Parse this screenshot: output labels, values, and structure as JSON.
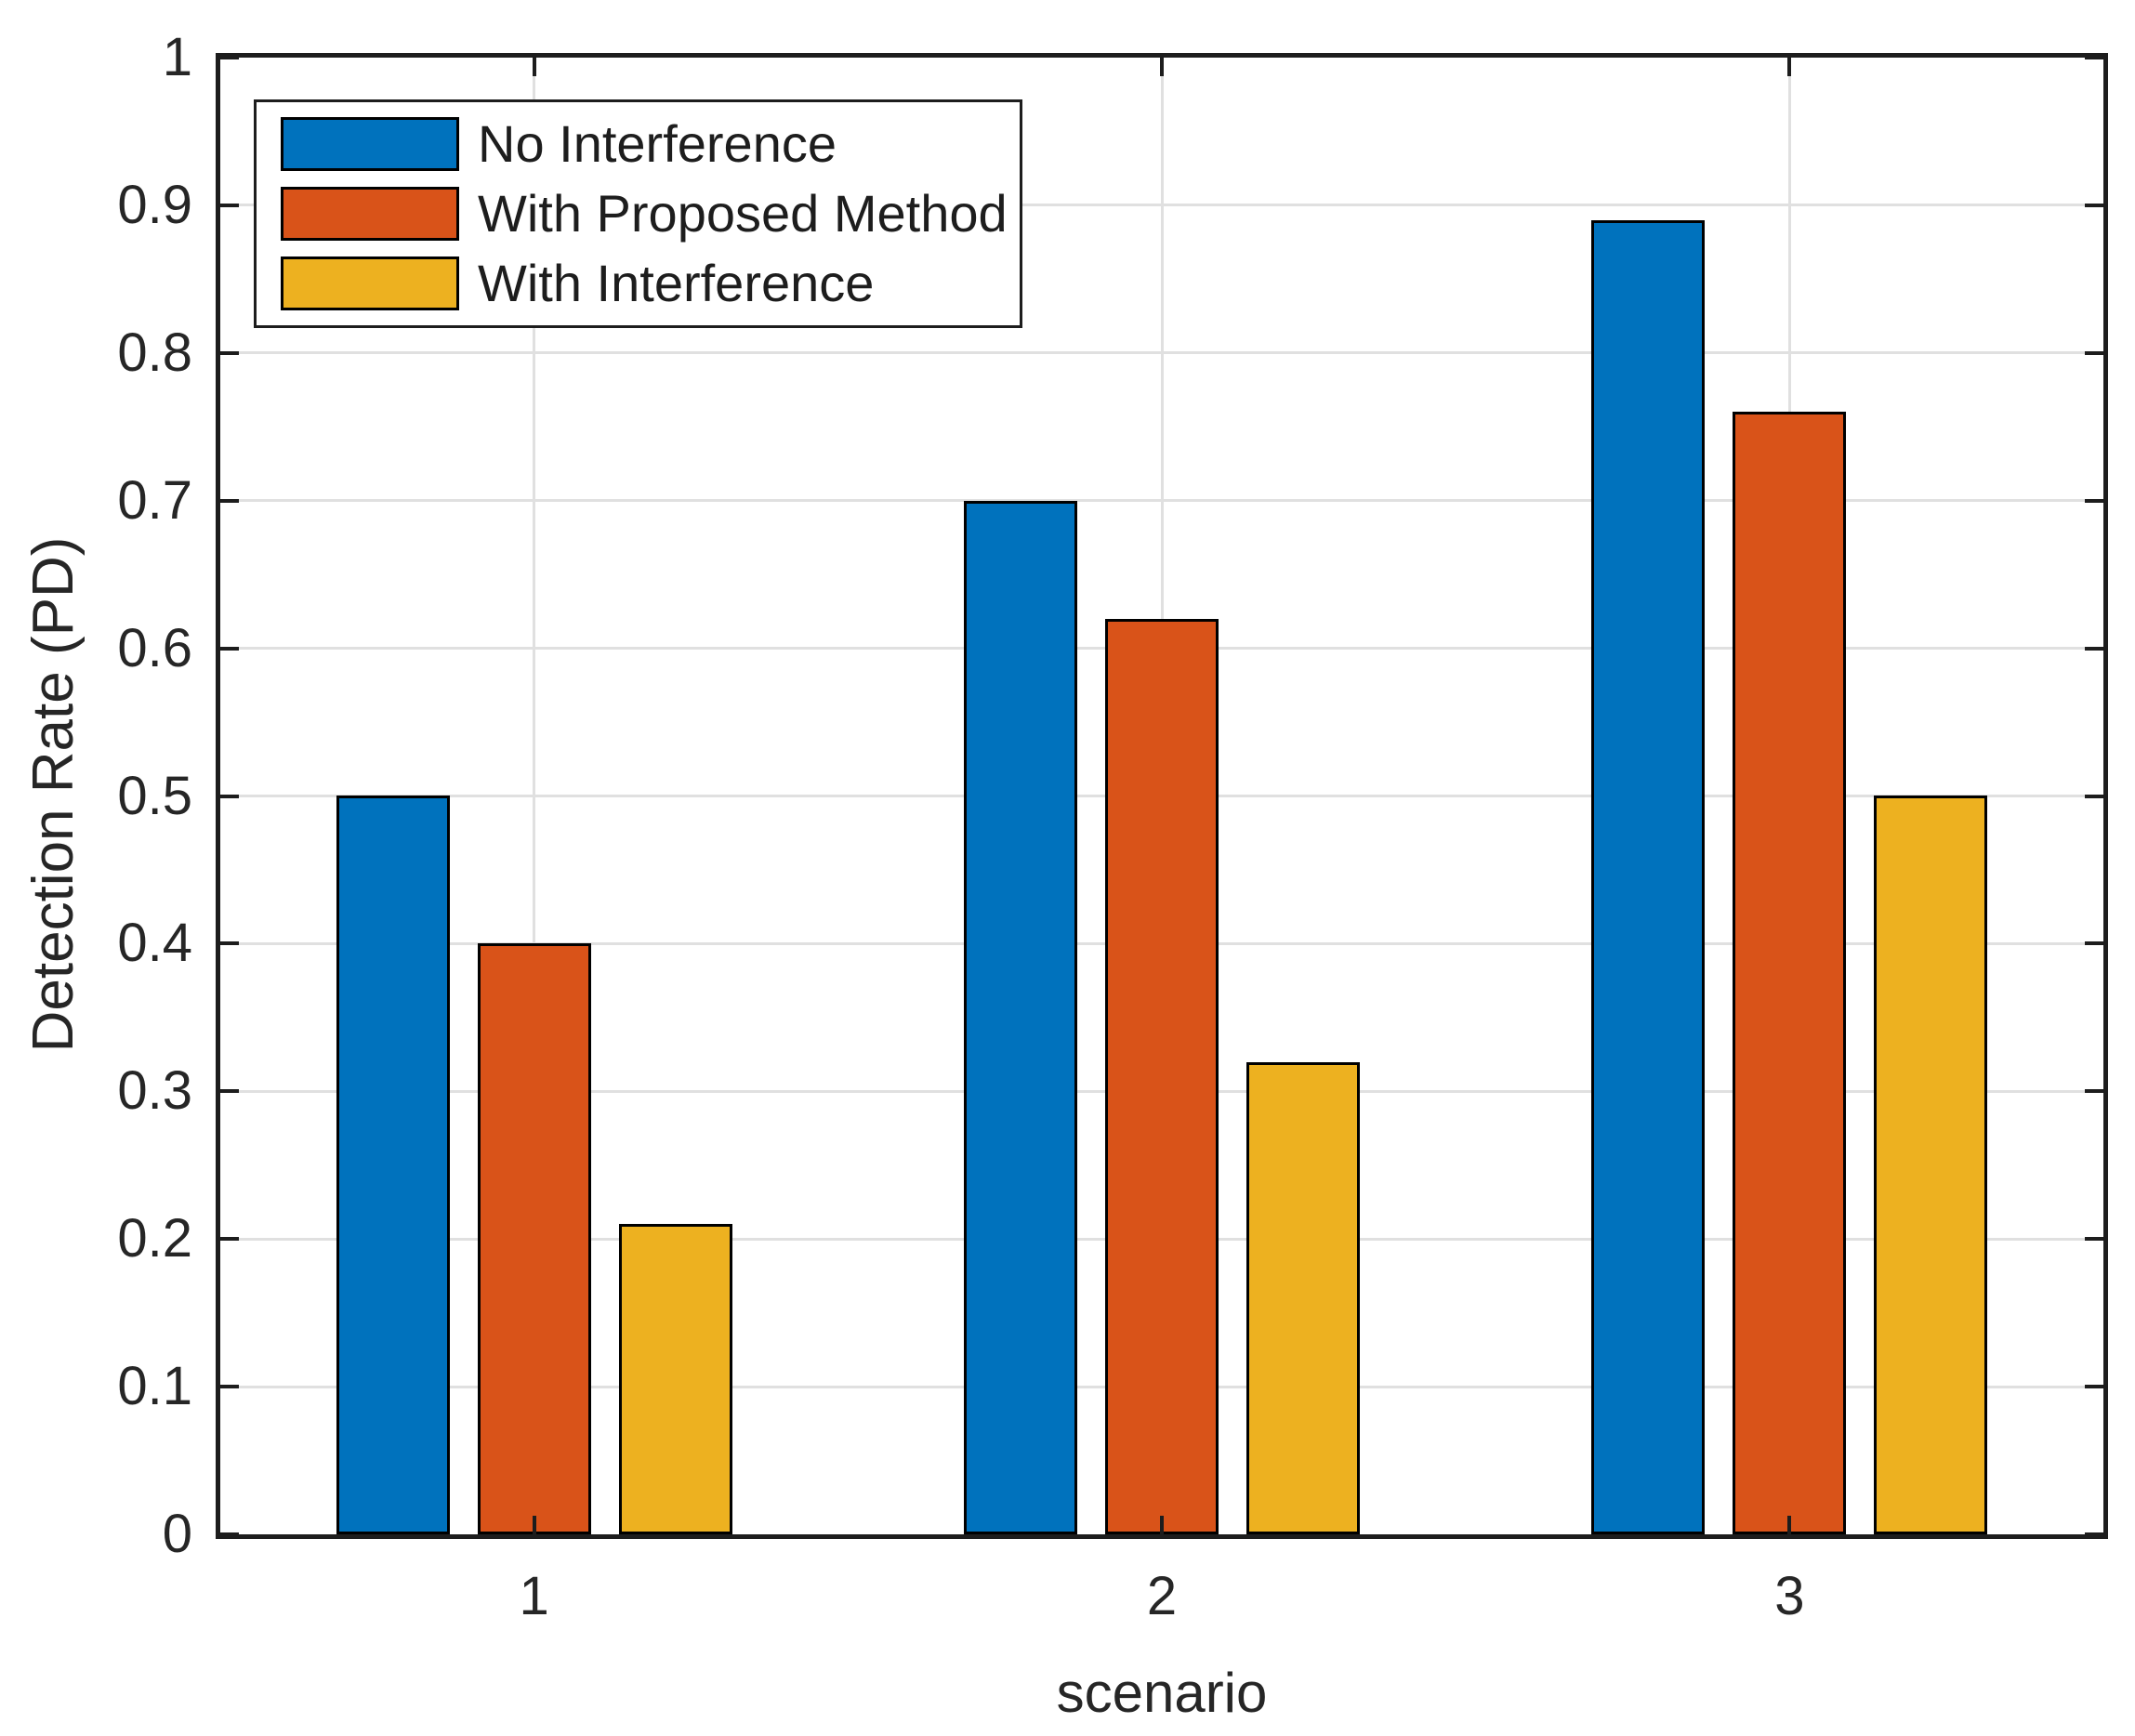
{
  "chart_data": {
    "type": "bar",
    "title": "",
    "xlabel": "scenario",
    "ylabel": "Detection Rate (PD)",
    "categories": [
      "1",
      "2",
      "3"
    ],
    "series": [
      {
        "name": "No Interference",
        "color": "#0072BD",
        "values": [
          0.5,
          0.7,
          0.89
        ]
      },
      {
        "name": "With Proposed Method",
        "color": "#D95319",
        "values": [
          0.4,
          0.62,
          0.76
        ]
      },
      {
        "name": "With Interference",
        "color": "#EDB120",
        "values": [
          0.21,
          0.32,
          0.5
        ]
      }
    ],
    "ylim": [
      0,
      1
    ],
    "yticks": [
      0,
      0.1,
      0.2,
      0.3,
      0.4,
      0.5,
      0.6,
      0.7,
      0.8,
      0.9,
      1
    ],
    "ytick_labels": [
      "0",
      "0.1",
      "0.2",
      "0.3",
      "0.4",
      "0.5",
      "0.6",
      "0.7",
      "0.8",
      "0.9",
      "1"
    ],
    "grid": true,
    "legend_position": "top-left",
    "bar_edge_color": "#000000",
    "axis_color": "#1d1d1d",
    "grid_color": "#e0e0e0",
    "text_color": "#262626",
    "background": "#ffffff"
  }
}
